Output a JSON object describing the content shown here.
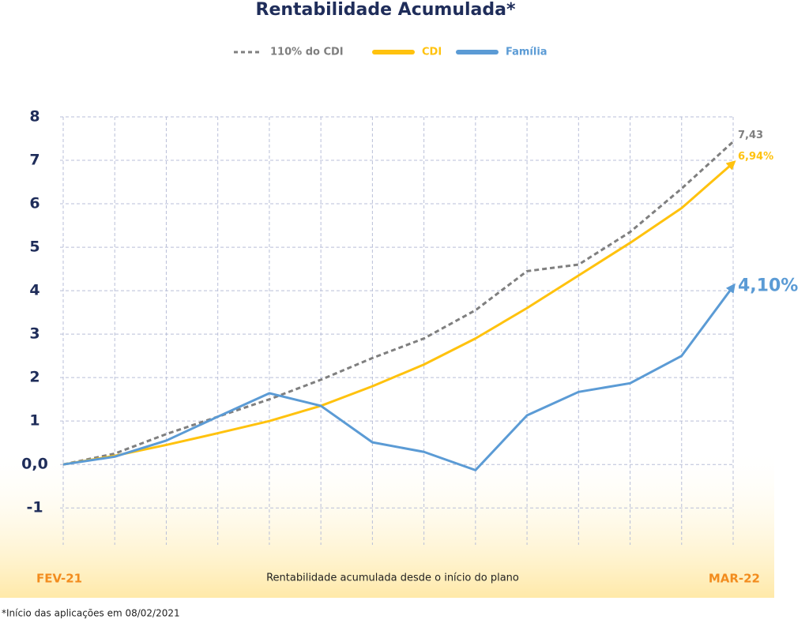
{
  "chart_data": {
    "type": "line",
    "title": "Rentabilidade Acumulada*",
    "x_label": "Rentabilidade acumulada desde o início do plano",
    "footnote": "*Início das aplicações em 08/02/2021",
    "categories": [
      "FEV-21",
      null,
      null,
      null,
      null,
      null,
      null,
      null,
      null,
      null,
      null,
      null,
      null,
      "MAR-22"
    ],
    "series": [
      {
        "name": "110% do CDI",
        "color": "#7f7f7f",
        "dashed": true,
        "arrow": false,
        "values": [
          0,
          0.25,
          0.7,
          1.1,
          1.5,
          1.95,
          2.45,
          2.9,
          3.55,
          4.45,
          4.6,
          5.35,
          6.35,
          7.43
        ],
        "value_labels": [
          null,
          null,
          null,
          null,
          null,
          null,
          null,
          null,
          null,
          null,
          null,
          null,
          null,
          "7,43"
        ]
      },
      {
        "name": "CDI",
        "color": "#ffc20e",
        "dashed": false,
        "arrow": true,
        "values": [
          0,
          0.2,
          0.45,
          0.72,
          1.0,
          1.35,
          1.8,
          2.3,
          2.9,
          3.6,
          4.35,
          5.1,
          5.9,
          6.94
        ],
        "value_labels": [
          null,
          null,
          null,
          null,
          null,
          null,
          null,
          null,
          null,
          null,
          null,
          null,
          null,
          "6,94%"
        ]
      },
      {
        "name": "Família",
        "color": "#5b9bd5",
        "dashed": false,
        "arrow": true,
        "values": [
          0,
          0.18,
          0.55,
          1.1,
          1.64,
          1.35,
          0.51,
          0.29,
          -0.13,
          1.13,
          1.67,
          1.87,
          2.5,
          4.1
        ],
        "value_labels": [
          null,
          null,
          null,
          null,
          null,
          null,
          null,
          null,
          null,
          null,
          null,
          null,
          null,
          "4,10%"
        ]
      }
    ],
    "ylim": [
      -1.85,
      8
    ],
    "yticks": [
      -1,
      {
        "value": 0,
        "label": "0,0"
      },
      1,
      2,
      3,
      4,
      5,
      6,
      7,
      8
    ],
    "grid": true
  }
}
